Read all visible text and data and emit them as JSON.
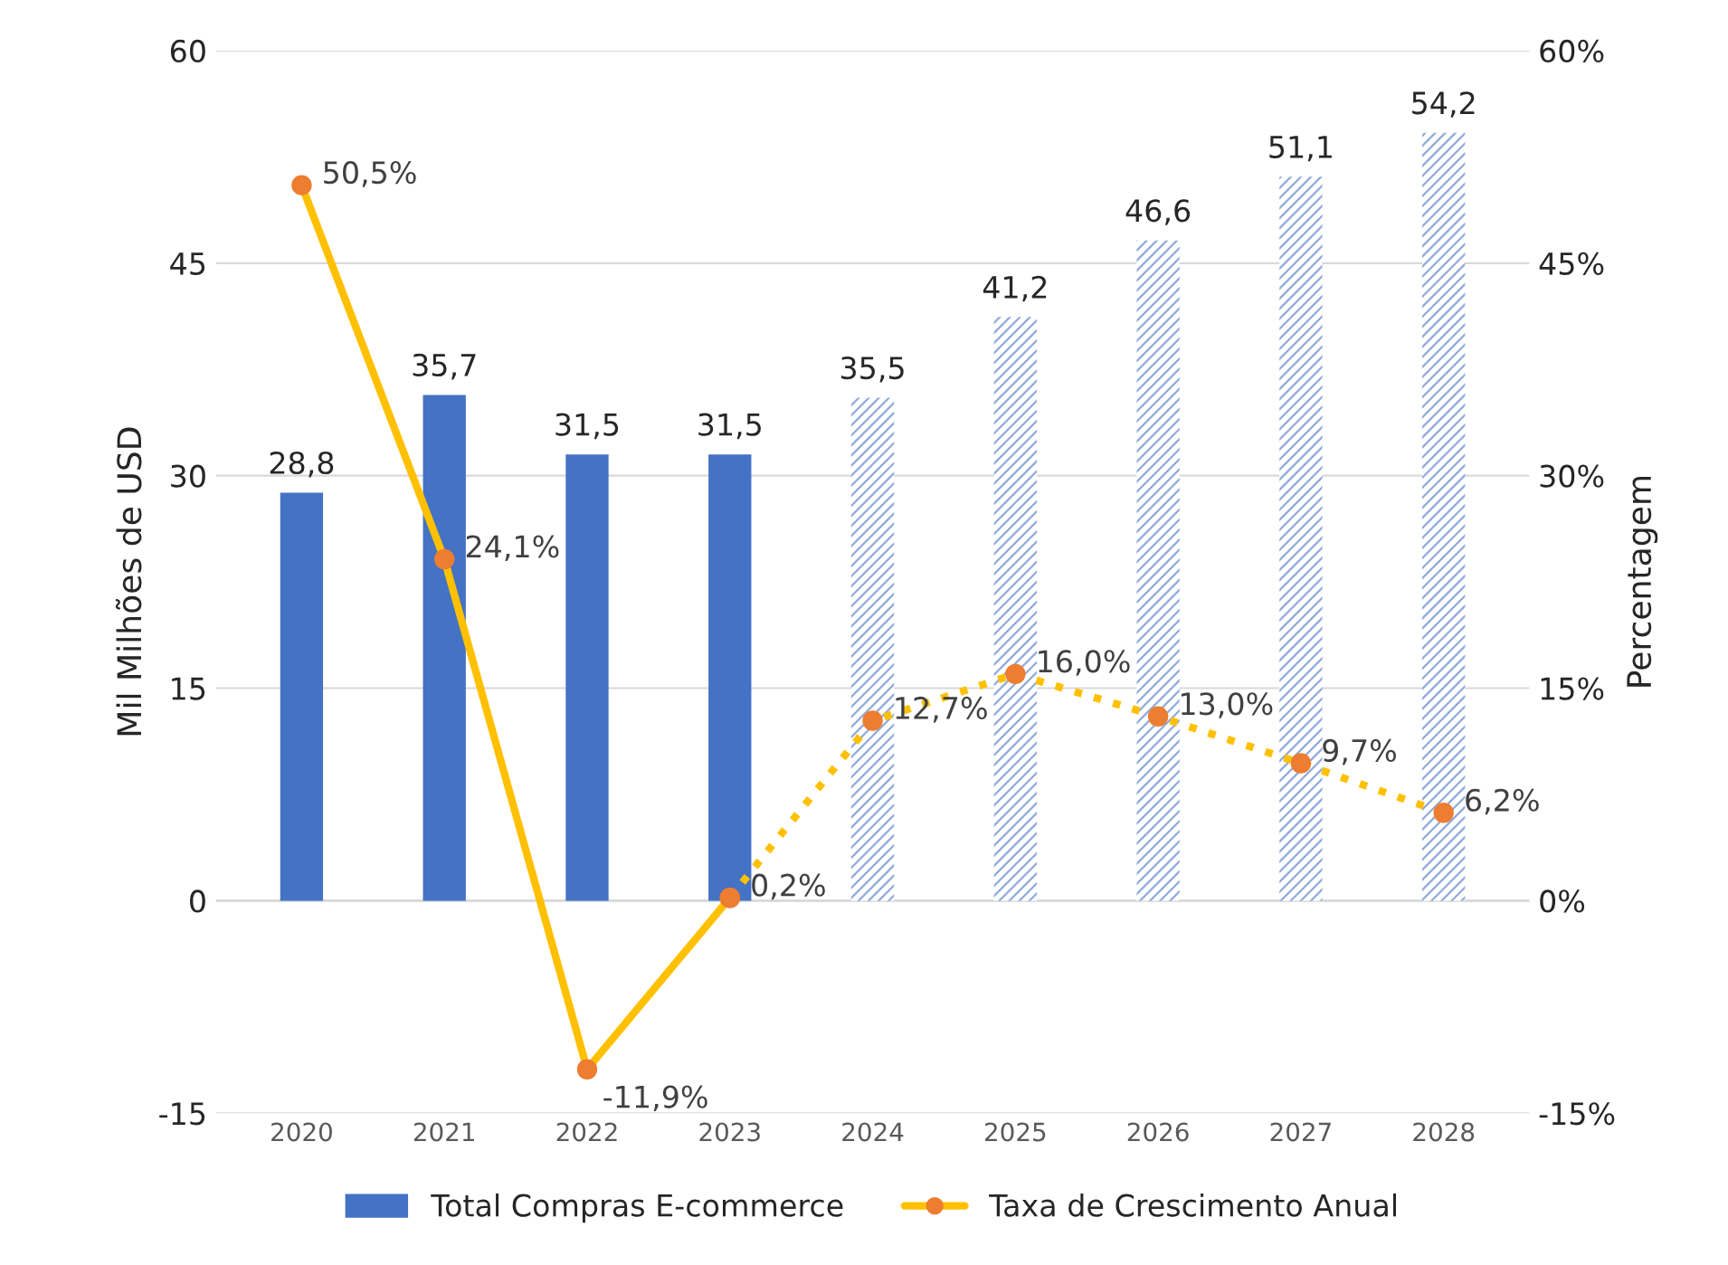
{
  "chart_data": {
    "type": "bar",
    "categories": [
      "2020",
      "2021",
      "2022",
      "2023",
      "2024",
      "2025",
      "2026",
      "2027",
      "2028"
    ],
    "ylabel": "Mil Milhões de USD",
    "y2label": "Percentagem",
    "ylim": [
      -15,
      60
    ],
    "yticks": [
      -15,
      0,
      15,
      30,
      45,
      60
    ],
    "y2lim": [
      -15,
      60
    ],
    "y2ticks": [
      {
        "value": -15,
        "label": "-15%"
      },
      {
        "value": 0,
        "label": "0%"
      },
      {
        "value": 15,
        "label": "15%"
      },
      {
        "value": 30,
        "label": "30%"
      },
      {
        "value": 45,
        "label": "45%"
      },
      {
        "value": 60,
        "label": "60%"
      }
    ],
    "grid": "y",
    "legend": "bottom",
    "series": [
      {
        "name": "Total Compras E-commerce",
        "color": "#4472c4",
        "values": [
          28.8,
          35.7,
          31.5,
          31.5,
          null,
          null,
          null,
          null,
          null
        ],
        "value_labels": [
          "28,8",
          "35,7",
          "31,5",
          "31,5",
          null,
          null,
          null,
          null,
          null
        ]
      },
      {
        "color": "#8faadc",
        "line_style": "dotted",
        "values": [
          null,
          null,
          null,
          null,
          35.5,
          41.2,
          46.6,
          51.1,
          54.2
        ],
        "value_labels": [
          null,
          null,
          null,
          null,
          "35,5",
          "41,2",
          "46,6",
          "51,1",
          "54,2"
        ]
      },
      {
        "name": "Taxa de Crescimento Anual",
        "type": "line",
        "color": "#ffc000",
        "marker": "circle",
        "line_style": "solid",
        "colors": [
          "#ed7d31",
          "#ed7d31",
          "#ed7d31",
          "#ed7d31",
          "#ed7d31",
          "#ed7d31",
          "#ed7d31",
          "#ed7d31",
          "#ed7d31"
        ],
        "values": [
          50.5,
          24.1,
          -11.9,
          0.2,
          null,
          null,
          null,
          null,
          null
        ],
        "value_labels": [
          "50,5%",
          "24,1%",
          "-11,9%",
          "0,2%",
          null,
          null,
          null,
          null,
          null
        ]
      },
      {
        "type": "line",
        "color": "#ffc000",
        "marker": "circle",
        "line_style": "dotted",
        "colors": [
          "#ed7d31",
          "#ed7d31",
          "#ed7d31",
          "#ed7d31",
          "#ed7d31",
          "#ed7d31",
          "#ed7d31",
          "#ed7d31",
          "#ed7d31"
        ],
        "values": [
          null,
          null,
          null,
          0.2,
          12.7,
          16.0,
          13.0,
          9.7,
          6.2
        ],
        "value_labels": [
          null,
          null,
          null,
          null,
          "12,7%",
          "16,0%",
          "13,0%",
          "9,7%",
          "6,2%"
        ]
      }
    ]
  }
}
